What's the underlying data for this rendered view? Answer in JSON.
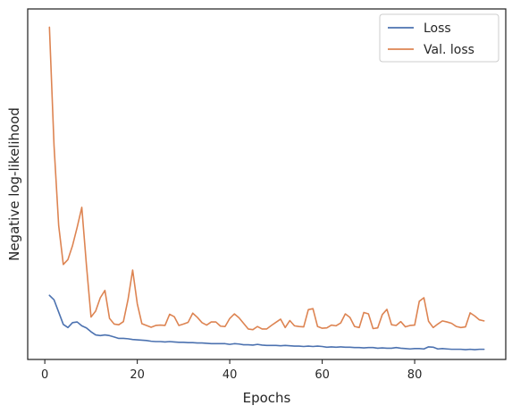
{
  "chart_data": {
    "type": "line",
    "title": "",
    "xlabel": "Epochs",
    "ylabel": "Negative log-likelihood",
    "xlim": [
      -3.7,
      99.7
    ],
    "ylim": [
      0,
      1
    ],
    "xticks": [
      0,
      20,
      40,
      60,
      80
    ],
    "yticks_labeled": false,
    "grid": false,
    "legend_position": "top-right",
    "series": [
      {
        "name": "Loss",
        "color": "#4c72b0",
        "x": [
          1,
          2,
          3,
          4,
          5,
          6,
          7,
          8,
          9,
          10,
          11,
          12,
          13,
          14,
          15,
          16,
          17,
          18,
          19,
          20,
          21,
          22,
          23,
          24,
          25,
          26,
          27,
          28,
          29,
          30,
          31,
          32,
          33,
          34,
          35,
          36,
          37,
          38,
          39,
          40,
          41,
          42,
          43,
          44,
          45,
          46,
          47,
          48,
          49,
          50,
          51,
          52,
          53,
          54,
          55,
          56,
          57,
          58,
          59,
          60,
          61,
          62,
          63,
          64,
          65,
          66,
          67,
          68,
          69,
          70,
          71,
          72,
          73,
          74,
          75,
          76,
          77,
          78,
          79,
          80,
          81,
          82,
          83,
          84,
          85,
          86,
          87,
          88,
          89,
          90,
          91,
          92,
          93,
          94,
          95
        ],
        "y": [
          0.183,
          0.17,
          0.135,
          0.1,
          0.091,
          0.105,
          0.107,
          0.096,
          0.09,
          0.079,
          0.07,
          0.068,
          0.07,
          0.068,
          0.064,
          0.06,
          0.06,
          0.059,
          0.057,
          0.056,
          0.055,
          0.054,
          0.052,
          0.051,
          0.051,
          0.05,
          0.051,
          0.05,
          0.049,
          0.049,
          0.048,
          0.048,
          0.047,
          0.047,
          0.046,
          0.045,
          0.045,
          0.045,
          0.045,
          0.043,
          0.045,
          0.044,
          0.042,
          0.042,
          0.041,
          0.043,
          0.041,
          0.04,
          0.04,
          0.04,
          0.039,
          0.04,
          0.039,
          0.038,
          0.038,
          0.037,
          0.038,
          0.037,
          0.038,
          0.037,
          0.035,
          0.036,
          0.035,
          0.036,
          0.035,
          0.035,
          0.034,
          0.034,
          0.033,
          0.034,
          0.034,
          0.032,
          0.033,
          0.032,
          0.032,
          0.034,
          0.032,
          0.031,
          0.03,
          0.031,
          0.031,
          0.03,
          0.036,
          0.035,
          0.03,
          0.031,
          0.03,
          0.029,
          0.029,
          0.029,
          0.028,
          0.029,
          0.028,
          0.029,
          0.029
        ]
      },
      {
        "name": "Val. loss",
        "color": "#dd8452",
        "x": [
          1,
          2,
          3,
          4,
          5,
          6,
          7,
          8,
          9,
          10,
          11,
          12,
          13,
          14,
          15,
          16,
          17,
          18,
          19,
          20,
          21,
          22,
          23,
          24,
          25,
          26,
          27,
          28,
          29,
          30,
          31,
          32,
          33,
          34,
          35,
          36,
          37,
          38,
          39,
          40,
          41,
          42,
          43,
          44,
          45,
          46,
          47,
          48,
          49,
          50,
          51,
          52,
          53,
          54,
          55,
          56,
          57,
          58,
          59,
          60,
          61,
          62,
          63,
          64,
          65,
          66,
          67,
          68,
          69,
          70,
          71,
          72,
          73,
          74,
          75,
          76,
          77,
          78,
          79,
          80,
          81,
          82,
          83,
          84,
          85,
          86,
          87,
          88,
          89,
          90,
          91,
          92,
          93,
          94,
          95
        ],
        "y": [
          0.948,
          0.609,
          0.382,
          0.271,
          0.285,
          0.325,
          0.377,
          0.434,
          0.27,
          0.121,
          0.138,
          0.176,
          0.197,
          0.117,
          0.101,
          0.099,
          0.108,
          0.171,
          0.255,
          0.159,
          0.102,
          0.097,
          0.092,
          0.097,
          0.098,
          0.097,
          0.129,
          0.122,
          0.097,
          0.101,
          0.106,
          0.132,
          0.12,
          0.105,
          0.098,
          0.107,
          0.107,
          0.095,
          0.094,
          0.117,
          0.13,
          0.119,
          0.103,
          0.087,
          0.085,
          0.094,
          0.087,
          0.087,
          0.097,
          0.106,
          0.115,
          0.091,
          0.111,
          0.096,
          0.094,
          0.093,
          0.142,
          0.145,
          0.094,
          0.089,
          0.09,
          0.098,
          0.096,
          0.104,
          0.13,
          0.12,
          0.094,
          0.091,
          0.134,
          0.13,
          0.088,
          0.09,
          0.128,
          0.143,
          0.099,
          0.097,
          0.108,
          0.093,
          0.097,
          0.098,
          0.166,
          0.176,
          0.109,
          0.091,
          0.101,
          0.11,
          0.107,
          0.103,
          0.094,
          0.091,
          0.093,
          0.133,
          0.124,
          0.113,
          0.11
        ]
      }
    ]
  }
}
